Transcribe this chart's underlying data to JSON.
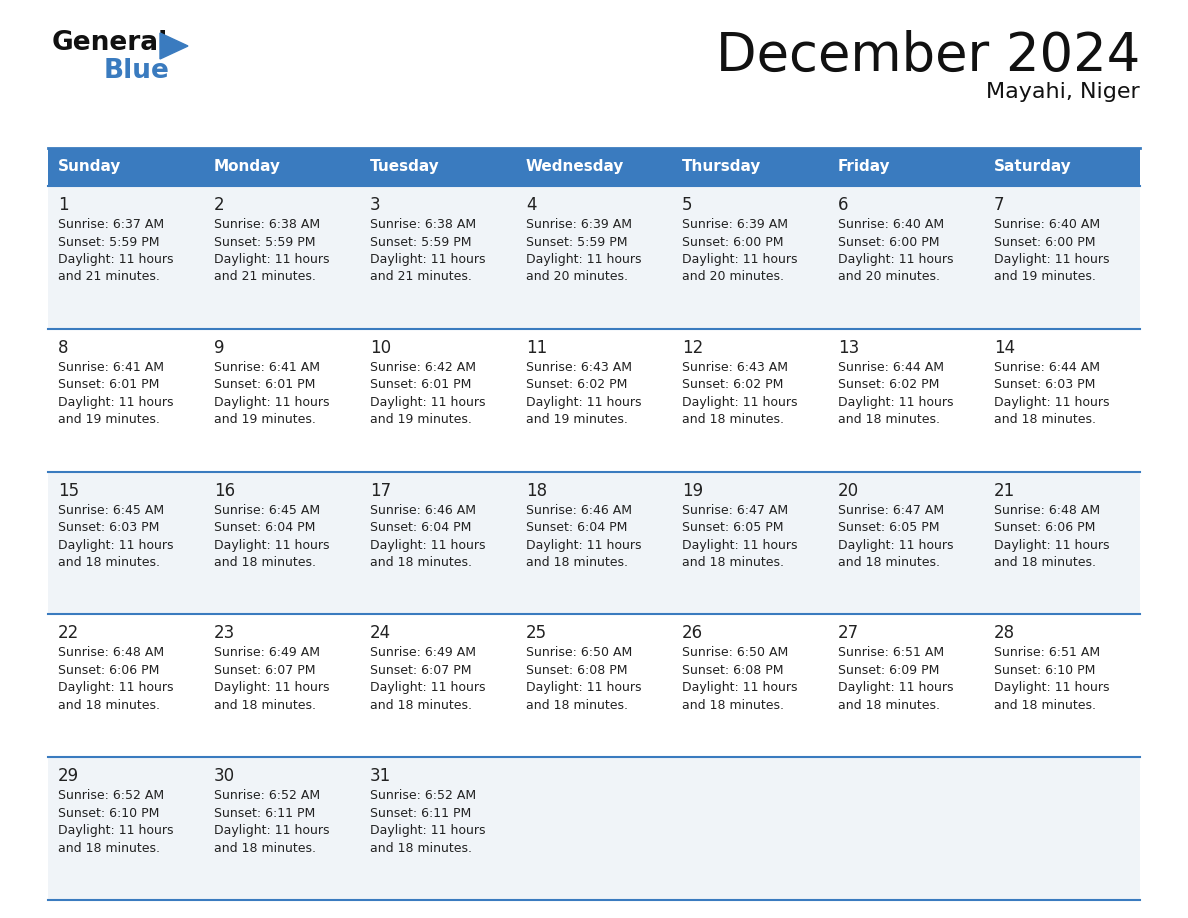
{
  "title": "December 2024",
  "subtitle": "Mayahi, Niger",
  "header_bg_color": "#3a7bbf",
  "header_text_color": "#ffffff",
  "border_color": "#3a7bbf",
  "text_color": "#222222",
  "days_of_week": [
    "Sunday",
    "Monday",
    "Tuesday",
    "Wednesday",
    "Thursday",
    "Friday",
    "Saturday"
  ],
  "weeks": [
    [
      {
        "day": 1,
        "sunrise": "6:37 AM",
        "sunset": "5:59 PM",
        "daylight_min": "21 minutes."
      },
      {
        "day": 2,
        "sunrise": "6:38 AM",
        "sunset": "5:59 PM",
        "daylight_min": "21 minutes."
      },
      {
        "day": 3,
        "sunrise": "6:38 AM",
        "sunset": "5:59 PM",
        "daylight_min": "21 minutes."
      },
      {
        "day": 4,
        "sunrise": "6:39 AM",
        "sunset": "5:59 PM",
        "daylight_min": "20 minutes."
      },
      {
        "day": 5,
        "sunrise": "6:39 AM",
        "sunset": "6:00 PM",
        "daylight_min": "20 minutes."
      },
      {
        "day": 6,
        "sunrise": "6:40 AM",
        "sunset": "6:00 PM",
        "daylight_min": "20 minutes."
      },
      {
        "day": 7,
        "sunrise": "6:40 AM",
        "sunset": "6:00 PM",
        "daylight_min": "19 minutes."
      }
    ],
    [
      {
        "day": 8,
        "sunrise": "6:41 AM",
        "sunset": "6:01 PM",
        "daylight_min": "19 minutes."
      },
      {
        "day": 9,
        "sunrise": "6:41 AM",
        "sunset": "6:01 PM",
        "daylight_min": "19 minutes."
      },
      {
        "day": 10,
        "sunrise": "6:42 AM",
        "sunset": "6:01 PM",
        "daylight_min": "19 minutes."
      },
      {
        "day": 11,
        "sunrise": "6:43 AM",
        "sunset": "6:02 PM",
        "daylight_min": "19 minutes."
      },
      {
        "day": 12,
        "sunrise": "6:43 AM",
        "sunset": "6:02 PM",
        "daylight_min": "18 minutes."
      },
      {
        "day": 13,
        "sunrise": "6:44 AM",
        "sunset": "6:02 PM",
        "daylight_min": "18 minutes."
      },
      {
        "day": 14,
        "sunrise": "6:44 AM",
        "sunset": "6:03 PM",
        "daylight_min": "18 minutes."
      }
    ],
    [
      {
        "day": 15,
        "sunrise": "6:45 AM",
        "sunset": "6:03 PM",
        "daylight_min": "18 minutes."
      },
      {
        "day": 16,
        "sunrise": "6:45 AM",
        "sunset": "6:04 PM",
        "daylight_min": "18 minutes."
      },
      {
        "day": 17,
        "sunrise": "6:46 AM",
        "sunset": "6:04 PM",
        "daylight_min": "18 minutes."
      },
      {
        "day": 18,
        "sunrise": "6:46 AM",
        "sunset": "6:04 PM",
        "daylight_min": "18 minutes."
      },
      {
        "day": 19,
        "sunrise": "6:47 AM",
        "sunset": "6:05 PM",
        "daylight_min": "18 minutes."
      },
      {
        "day": 20,
        "sunrise": "6:47 AM",
        "sunset": "6:05 PM",
        "daylight_min": "18 minutes."
      },
      {
        "day": 21,
        "sunrise": "6:48 AM",
        "sunset": "6:06 PM",
        "daylight_min": "18 minutes."
      }
    ],
    [
      {
        "day": 22,
        "sunrise": "6:48 AM",
        "sunset": "6:06 PM",
        "daylight_min": "18 minutes."
      },
      {
        "day": 23,
        "sunrise": "6:49 AM",
        "sunset": "6:07 PM",
        "daylight_min": "18 minutes."
      },
      {
        "day": 24,
        "sunrise": "6:49 AM",
        "sunset": "6:07 PM",
        "daylight_min": "18 minutes."
      },
      {
        "day": 25,
        "sunrise": "6:50 AM",
        "sunset": "6:08 PM",
        "daylight_min": "18 minutes."
      },
      {
        "day": 26,
        "sunrise": "6:50 AM",
        "sunset": "6:08 PM",
        "daylight_min": "18 minutes."
      },
      {
        "day": 27,
        "sunrise": "6:51 AM",
        "sunset": "6:09 PM",
        "daylight_min": "18 minutes."
      },
      {
        "day": 28,
        "sunrise": "6:51 AM",
        "sunset": "6:10 PM",
        "daylight_min": "18 minutes."
      }
    ],
    [
      {
        "day": 29,
        "sunrise": "6:52 AM",
        "sunset": "6:10 PM",
        "daylight_min": "18 minutes."
      },
      {
        "day": 30,
        "sunrise": "6:52 AM",
        "sunset": "6:11 PM",
        "daylight_min": "18 minutes."
      },
      {
        "day": 31,
        "sunrise": "6:52 AM",
        "sunset": "6:11 PM",
        "daylight_min": "18 minutes."
      },
      null,
      null,
      null,
      null
    ]
  ]
}
